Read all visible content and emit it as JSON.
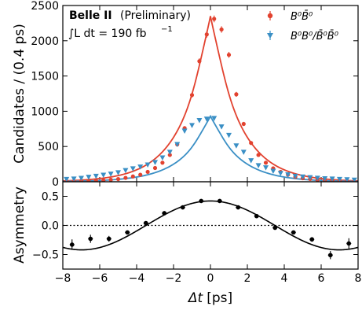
{
  "chart_data": [
    {
      "type": "scatter",
      "panel": "main",
      "annotation": {
        "experiment": "Belle II",
        "status": "(Preliminary)",
        "lumi_integral": "∫L dt = 190 fb",
        "lumi_exponent": "−1"
      },
      "ylabel": "Candidates / (0.4 ps)",
      "xlim": [
        -8,
        8
      ],
      "ylim": [
        0,
        2500
      ],
      "yticks": [
        0,
        500,
        1000,
        1500,
        2000,
        2500
      ],
      "legend_position": "top-right",
      "series": [
        {
          "name": "B⁰B̄⁰",
          "color": "#e2422f",
          "marker": "circle",
          "x": [
            -7.8,
            -7.4,
            -7.0,
            -6.6,
            -6.2,
            -5.8,
            -5.4,
            -5.0,
            -4.6,
            -4.2,
            -3.8,
            -3.4,
            -3.0,
            -2.6,
            -2.2,
            -1.8,
            -1.4,
            -1.0,
            -0.6,
            -0.2,
            0.2,
            0.6,
            1.0,
            1.4,
            1.8,
            2.2,
            2.6,
            3.0,
            3.4,
            3.8,
            4.2,
            4.6,
            5.0,
            5.4,
            5.8,
            6.2,
            6.6,
            7.0,
            7.4,
            7.8
          ],
          "y": [
            4,
            5,
            8,
            11,
            14,
            20,
            28,
            38,
            55,
            75,
            100,
            140,
            195,
            270,
            380,
            530,
            760,
            1230,
            1710,
            2090,
            2310,
            2160,
            1800,
            1240,
            820,
            550,
            380,
            270,
            190,
            140,
            100,
            70,
            50,
            40,
            28,
            20,
            14,
            10,
            7,
            4
          ],
          "yerr": [
            2,
            2,
            3,
            3,
            4,
            4,
            5,
            6,
            7,
            9,
            10,
            12,
            14,
            16,
            20,
            23,
            28,
            35,
            41,
            46,
            48,
            46,
            42,
            35,
            29,
            23,
            20,
            16,
            14,
            12,
            10,
            8,
            7,
            6,
            5,
            4,
            4,
            3,
            3,
            2
          ],
          "fit_model": {
            "A": 2350,
            "tau": 1.52,
            "amplitude_scale": 0.78
          }
        },
        {
          "name": "B⁰B⁰/B̄⁰B̄⁰",
          "color": "#3a8fc5",
          "marker": "triangle-down",
          "x": [
            -7.8,
            -7.4,
            -7.0,
            -6.6,
            -6.2,
            -5.8,
            -5.4,
            -5.0,
            -4.6,
            -4.2,
            -3.8,
            -3.4,
            -3.0,
            -2.6,
            -2.2,
            -1.8,
            -1.4,
            -1.0,
            -0.6,
            -0.2,
            0.2,
            0.6,
            1.0,
            1.4,
            1.8,
            2.2,
            2.6,
            3.0,
            3.4,
            3.8,
            4.2,
            4.6,
            5.0,
            5.4,
            5.8,
            6.2,
            6.6,
            7.0,
            7.4,
            7.8
          ],
          "y": [
            35,
            40,
            50,
            65,
            80,
            95,
            110,
            130,
            160,
            185,
            210,
            240,
            275,
            340,
            420,
            530,
            720,
            800,
            870,
            890,
            900,
            780,
            660,
            510,
            420,
            300,
            230,
            200,
            150,
            120,
            100,
            80,
            70,
            60,
            52,
            45,
            40,
            35,
            30,
            25
          ],
          "yerr": [
            6,
            6,
            7,
            8,
            9,
            10,
            10,
            11,
            13,
            14,
            15,
            16,
            17,
            18,
            20,
            23,
            27,
            28,
            29,
            30,
            30,
            28,
            26,
            23,
            20,
            17,
            15,
            14,
            12,
            11,
            10,
            9,
            8,
            8,
            7,
            7,
            6,
            6,
            5,
            5
          ],
          "fit_model": {
            "A": 930,
            "tau": 1.52,
            "amplitude_scale": 0.78
          }
        }
      ]
    },
    {
      "type": "scatter",
      "panel": "asymmetry",
      "xlabel_symbol": "Δt",
      "xlabel_unit": "[ps]",
      "ylabel": "Asymmetry",
      "xlim": [
        -8,
        8
      ],
      "ylim": [
        -0.75,
        0.75
      ],
      "yticks": [
        -0.5,
        0.0,
        0.5
      ],
      "xticks": [
        -8,
        -6,
        -4,
        -2,
        0,
        2,
        4,
        6,
        8
      ],
      "reference_line": 0.0,
      "series": [
        {
          "name": "Asymmetry",
          "color": "#000000",
          "marker": "circle",
          "x": [
            -7.5,
            -6.5,
            -5.5,
            -4.5,
            -3.5,
            -2.5,
            -1.5,
            -0.5,
            0.5,
            1.5,
            2.5,
            3.5,
            4.5,
            5.5,
            6.5,
            7.5
          ],
          "y": [
            -0.33,
            -0.23,
            -0.23,
            -0.12,
            0.04,
            0.21,
            0.31,
            0.42,
            0.42,
            0.31,
            0.16,
            -0.04,
            -0.12,
            -0.24,
            -0.51,
            -0.31
          ],
          "yerr": [
            0.09,
            0.07,
            0.05,
            0.03,
            0.02,
            0.02,
            0.02,
            0.01,
            0.01,
            0.02,
            0.02,
            0.02,
            0.03,
            0.04,
            0.07,
            0.09
          ],
          "fit_model": {
            "amplitude": 0.42,
            "dm": 0.5
          }
        }
      ]
    }
  ]
}
